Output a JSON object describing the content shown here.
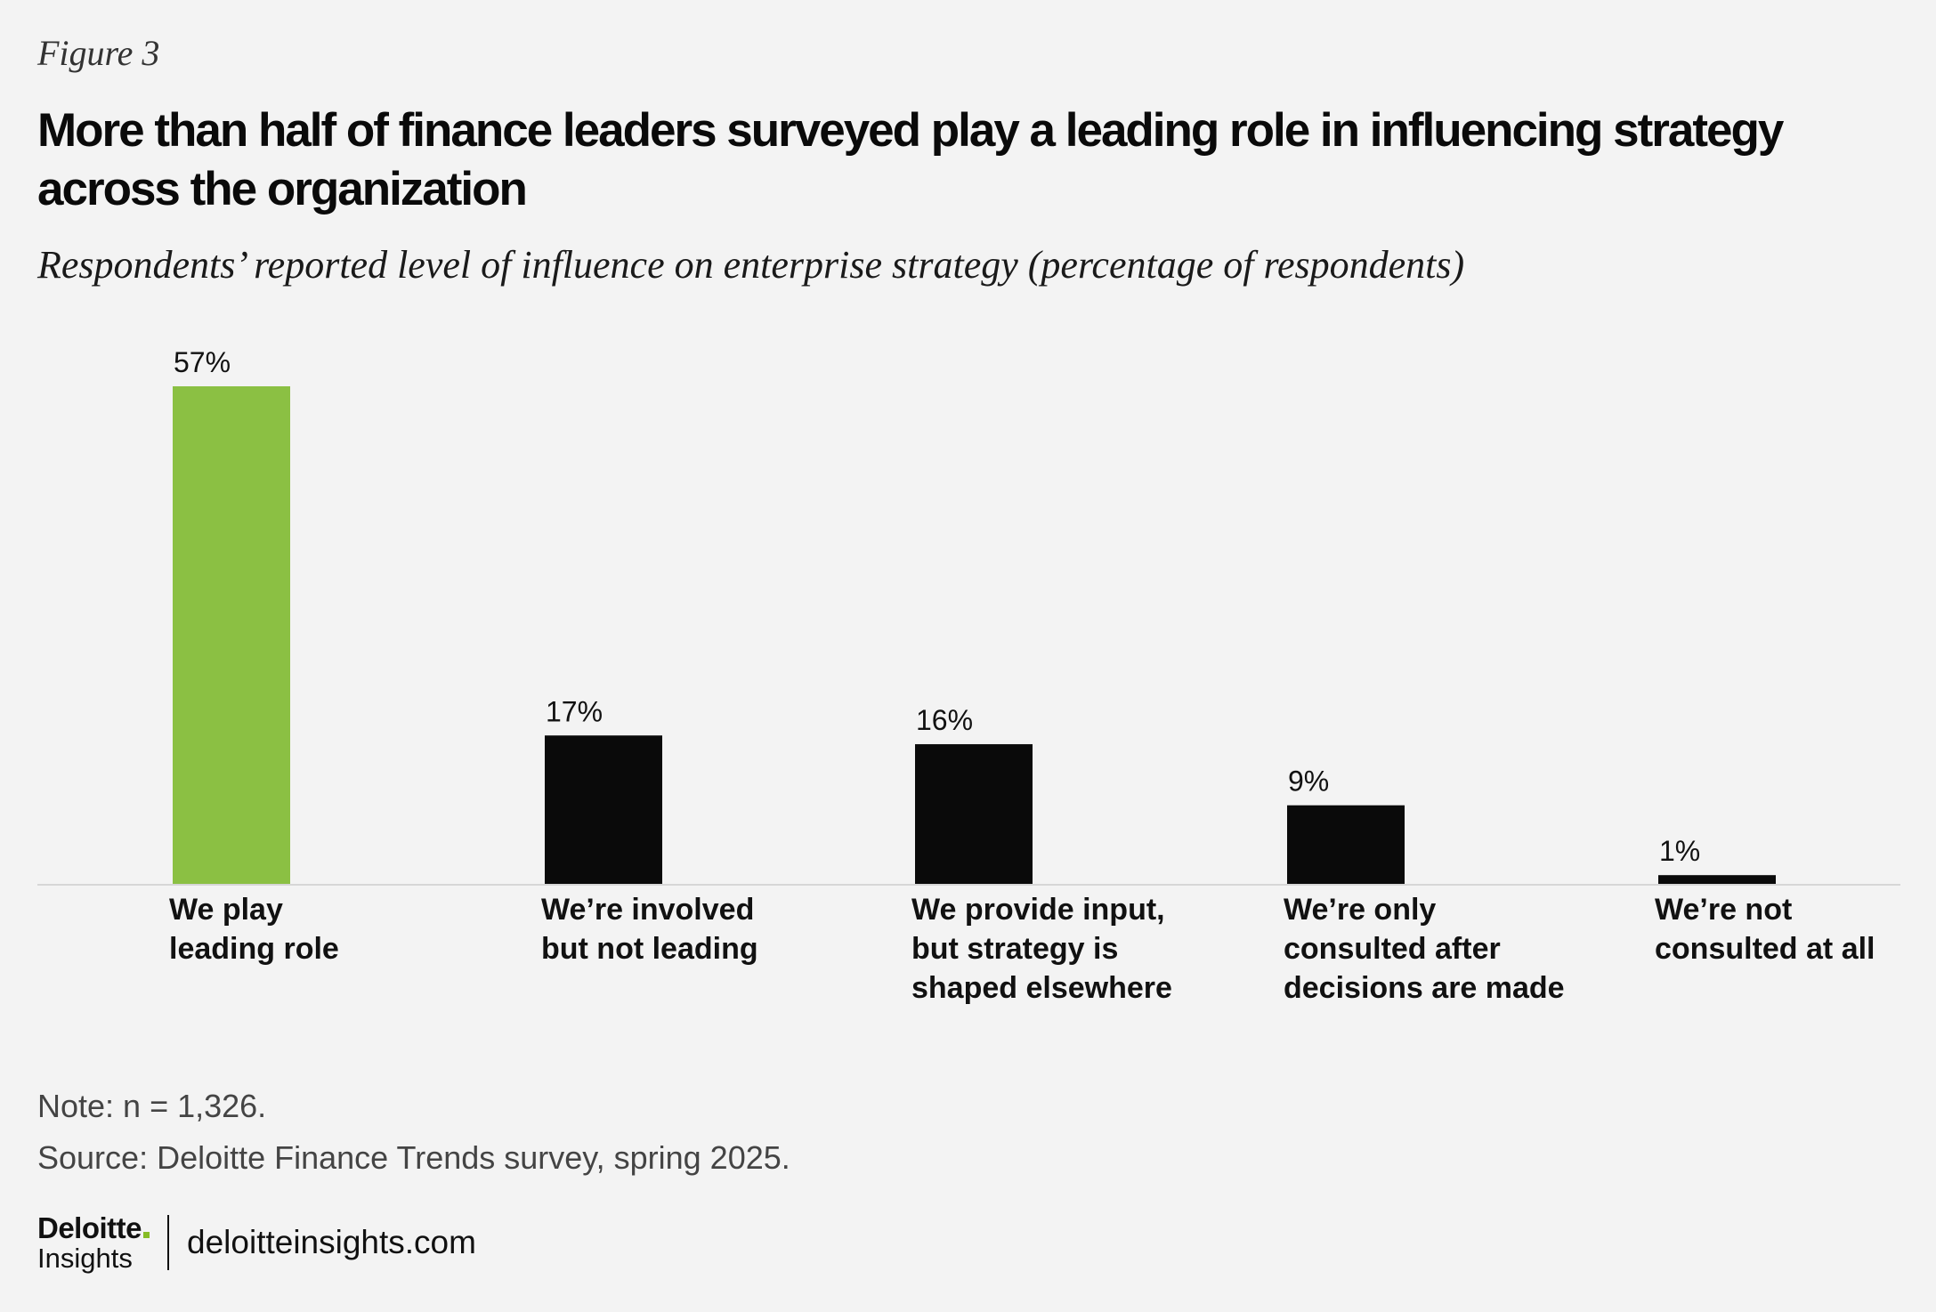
{
  "figure_label": "Figure 3",
  "note": "Note: n = 1,326.",
  "source": "Source: Deloitte Finance Trends survey, spring 2025.",
  "footer": {
    "brand": "Deloitte",
    "brand_sub": "Insights",
    "site": "deloitteinsights.com"
  },
  "colors": {
    "highlight": "#8bc043",
    "bar": "#0a0a0a",
    "axis": "#d6d6d6",
    "background": "#f3f3f3"
  },
  "chart_data": {
    "type": "bar",
    "title": "More than half of finance leaders surveyed play a leading role in influencing strategy across the organization",
    "subtitle": "Respondents’ reported level of influence on enterprise strategy (percentage of respondents)",
    "categories": [
      [
        "We play",
        "leading role"
      ],
      [
        "We’re involved",
        "but not leading"
      ],
      [
        "We provide input,",
        "but strategy is",
        "shaped elsewhere"
      ],
      [
        "We’re only",
        "consulted after",
        "decisions are made"
      ],
      [
        "We’re not",
        "consulted at all"
      ]
    ],
    "values": [
      57,
      17,
      16,
      9,
      1
    ],
    "value_labels": [
      "57%",
      "17%",
      "16%",
      "9%",
      "1%"
    ],
    "highlight_index": 0,
    "ylim": [
      0,
      57
    ],
    "grid": false,
    "legend": "none",
    "xlabel": "",
    "ylabel": ""
  }
}
